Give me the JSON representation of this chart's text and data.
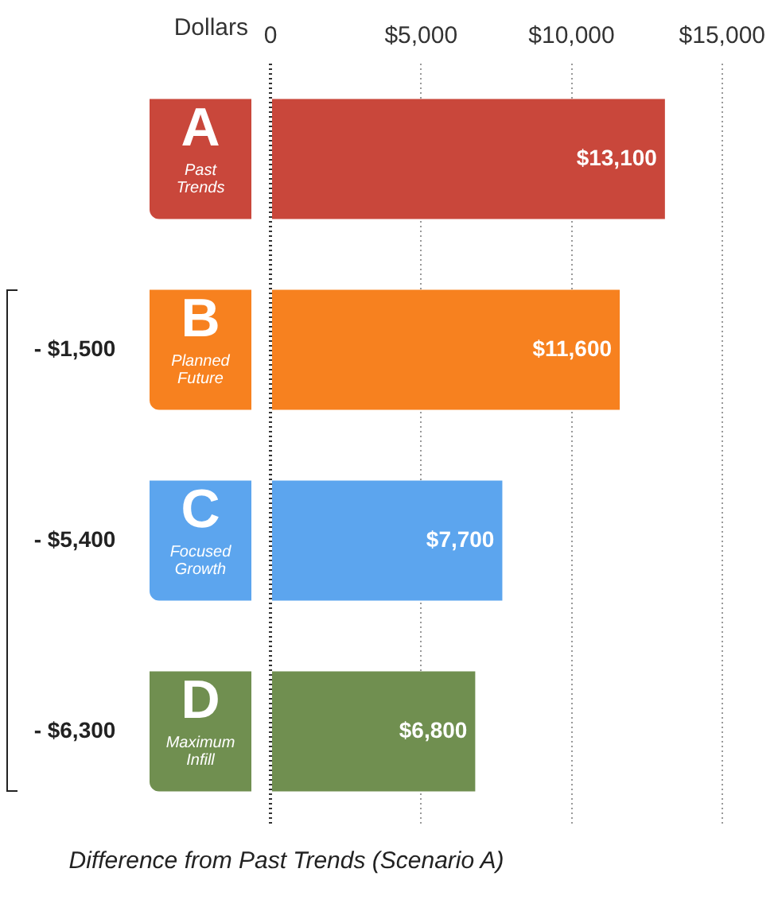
{
  "chart_data": {
    "type": "bar",
    "orientation": "horizontal",
    "ylabel": "Dollars",
    "categories": [
      "A Past Trends",
      "B Planned Future",
      "C Focused Growth",
      "D Maximum Infill"
    ],
    "values": [
      13100,
      11600,
      7700,
      6800
    ],
    "colors": [
      "#c9473b",
      "#f7811f",
      "#5ca5ee",
      "#708f50"
    ],
    "value_labels": [
      "$13,100",
      "$11,600",
      "$7,700",
      "$6,800"
    ],
    "xlim": [
      0,
      15000
    ],
    "xticks": [
      0,
      {
        "value": 5000,
        "label": "$5,000"
      },
      {
        "value": 10000,
        "label": "$10,000"
      },
      {
        "value": 15000,
        "label": "$15,000"
      }
    ],
    "grid": "x",
    "annotations": [
      "- $1,500",
      "- $5,400",
      "- $6,300",
      "Difference from Past Trends (Scenario A)"
    ]
  }
}
